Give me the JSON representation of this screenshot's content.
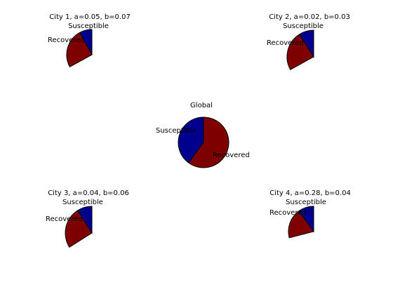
{
  "chart_data": [
    {
      "type": "pie",
      "title": "City 1, a=0.05, b=0.07",
      "categories": [
        "Recovered",
        "Susceptible"
      ],
      "values": [
        0.25,
        0.08
      ],
      "colors": [
        "#7f0000",
        "#00008f"
      ],
      "full_circle": false
    },
    {
      "type": "pie",
      "title": "City 2, a=0.02, b=0.03",
      "categories": [
        "Recovered",
        "Susceptible"
      ],
      "values": [
        0.24,
        0.09
      ],
      "colors": [
        "#7f0000",
        "#00008f"
      ],
      "full_circle": false
    },
    {
      "type": "pie",
      "title": "Global",
      "categories": [
        "Recovered",
        "Susceptible"
      ],
      "values": [
        0.6,
        0.4
      ],
      "colors": [
        "#7f0000",
        "#00008f"
      ],
      "full_circle": true
    },
    {
      "type": "pie",
      "title": "City 3, a=0.04, b=0.06",
      "categories": [
        "Recovered",
        "Susceptible"
      ],
      "values": [
        0.25,
        0.09
      ],
      "colors": [
        "#7f0000",
        "#00008f"
      ],
      "full_circle": false
    },
    {
      "type": "pie",
      "title": "City 4, a=0.28, b=0.04",
      "categories": [
        "Recovered",
        "Susceptible"
      ],
      "values": [
        0.19,
        0.1
      ],
      "colors": [
        "#7f0000",
        "#00008f"
      ],
      "full_circle": false
    }
  ]
}
